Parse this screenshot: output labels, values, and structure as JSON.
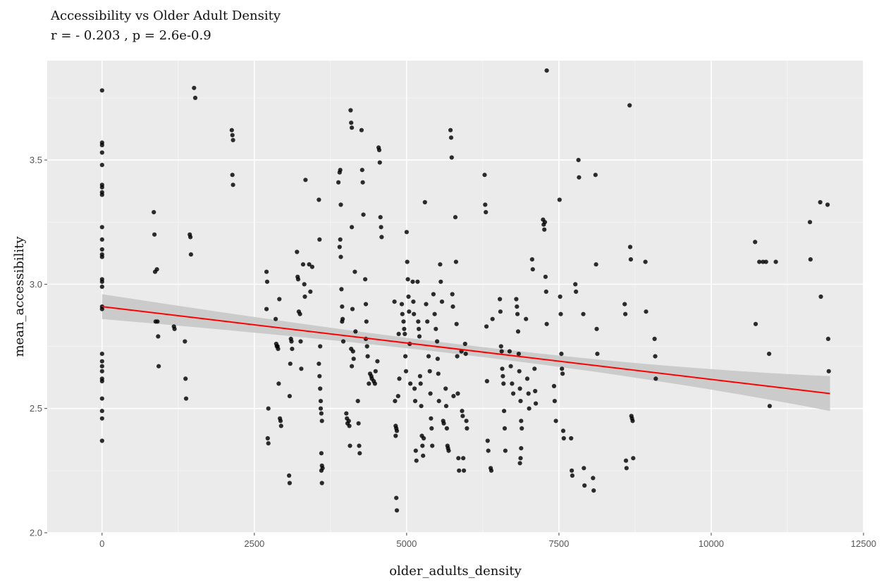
{
  "chart_data": {
    "type": "scatter",
    "title": "Accessibility vs Older Adult Density",
    "subtitle": "r = - 0.203 , p = 2.6e-0.9",
    "xlabel": "older_adults_density",
    "ylabel": "mean_accessibility",
    "xlim": [
      -900,
      12500
    ],
    "ylim": [
      2.0,
      3.9
    ],
    "x_ticks": [
      0,
      2500,
      5000,
      7500,
      10000,
      12500
    ],
    "x_tick_labels": [
      "0",
      "2500",
      "5000",
      "7500",
      "10000",
      "12500"
    ],
    "y_ticks": [
      2.0,
      2.5,
      3.0,
      3.5
    ],
    "y_tick_labels": [
      "2.0",
      "2.5",
      "3.0",
      "3.5"
    ],
    "grid": true,
    "background": "#ebebeb",
    "point_color": "#000000",
    "fit_line": {
      "type": "linear",
      "color": "#ff0000",
      "band_color": "#c8c8c8",
      "x": [
        0,
        11950
      ],
      "y": [
        2.91,
        2.56
      ],
      "ci_half_width": [
        0.05,
        0.07
      ]
    },
    "points": [
      [
        0,
        3.78
      ],
      [
        0,
        3.57
      ],
      [
        0,
        3.56
      ],
      [
        0,
        3.53
      ],
      [
        0,
        3.48
      ],
      [
        0,
        3.4
      ],
      [
        0,
        3.39
      ],
      [
        0,
        3.37
      ],
      [
        0,
        3.36
      ],
      [
        0,
        3.23
      ],
      [
        0,
        3.18
      ],
      [
        0,
        3.14
      ],
      [
        0,
        3.12
      ],
      [
        0,
        3.11
      ],
      [
        0,
        3.02
      ],
      [
        0,
        3.01
      ],
      [
        0,
        2.99
      ],
      [
        0,
        2.91
      ],
      [
        0,
        2.9
      ],
      [
        0,
        2.72
      ],
      [
        0,
        2.69
      ],
      [
        0,
        2.67
      ],
      [
        0,
        2.65
      ],
      [
        0,
        2.62
      ],
      [
        0,
        2.61
      ],
      [
        0,
        2.54
      ],
      [
        0,
        2.49
      ],
      [
        0,
        2.46
      ],
      [
        0,
        2.37
      ],
      [
        850,
        3.29
      ],
      [
        860,
        3.2
      ],
      [
        870,
        3.05
      ],
      [
        900,
        3.06
      ],
      [
        880,
        2.85
      ],
      [
        910,
        2.85
      ],
      [
        920,
        2.79
      ],
      [
        930,
        2.67
      ],
      [
        1180,
        2.83
      ],
      [
        1190,
        2.82
      ],
      [
        1360,
        2.77
      ],
      [
        1370,
        2.62
      ],
      [
        1380,
        2.54
      ],
      [
        1440,
        3.2
      ],
      [
        1450,
        3.19
      ],
      [
        1460,
        3.12
      ],
      [
        1510,
        3.79
      ],
      [
        1530,
        3.75
      ],
      [
        2130,
        3.62
      ],
      [
        2140,
        3.6
      ],
      [
        2150,
        3.58
      ],
      [
        2140,
        3.44
      ],
      [
        2150,
        3.4
      ],
      [
        2700,
        3.05
      ],
      [
        2710,
        3.01
      ],
      [
        2700,
        2.9
      ],
      [
        2730,
        2.5
      ],
      [
        2720,
        2.38
      ],
      [
        2730,
        2.36
      ],
      [
        2850,
        2.86
      ],
      [
        2860,
        2.76
      ],
      [
        2870,
        2.75
      ],
      [
        2880,
        2.75
      ],
      [
        2890,
        2.74
      ],
      [
        2900,
        2.6
      ],
      [
        2910,
        2.94
      ],
      [
        2920,
        2.46
      ],
      [
        2930,
        2.45
      ],
      [
        2940,
        2.43
      ],
      [
        3100,
        2.78
      ],
      [
        3110,
        2.77
      ],
      [
        3120,
        2.74
      ],
      [
        3090,
        2.68
      ],
      [
        3080,
        2.55
      ],
      [
        3070,
        2.23
      ],
      [
        3080,
        2.2
      ],
      [
        3200,
        3.13
      ],
      [
        3210,
        3.03
      ],
      [
        3220,
        3.02
      ],
      [
        3230,
        2.89
      ],
      [
        3250,
        2.88
      ],
      [
        3260,
        2.77
      ],
      [
        3270,
        2.66
      ],
      [
        3300,
        3.08
      ],
      [
        3320,
        3.0
      ],
      [
        3330,
        2.95
      ],
      [
        3340,
        3.42
      ],
      [
        3400,
        3.08
      ],
      [
        3420,
        2.97
      ],
      [
        3450,
        3.07
      ],
      [
        3560,
        3.34
      ],
      [
        3570,
        3.18
      ],
      [
        3580,
        2.75
      ],
      [
        3560,
        2.68
      ],
      [
        3570,
        2.63
      ],
      [
        3580,
        2.58
      ],
      [
        3590,
        2.53
      ],
      [
        3590,
        2.5
      ],
      [
        3600,
        2.48
      ],
      [
        3610,
        2.45
      ],
      [
        3600,
        2.32
      ],
      [
        3610,
        2.27
      ],
      [
        3620,
        2.26
      ],
      [
        3600,
        2.25
      ],
      [
        3610,
        2.2
      ],
      [
        3880,
        3.41
      ],
      [
        3900,
        3.45
      ],
      [
        3910,
        3.46
      ],
      [
        3920,
        3.32
      ],
      [
        3910,
        3.18
      ],
      [
        3900,
        3.15
      ],
      [
        3920,
        3.11
      ],
      [
        3930,
        2.98
      ],
      [
        3940,
        2.91
      ],
      [
        3950,
        2.86
      ],
      [
        3940,
        2.85
      ],
      [
        3960,
        2.77
      ],
      [
        4010,
        2.48
      ],
      [
        4020,
        2.46
      ],
      [
        4030,
        2.44
      ],
      [
        4050,
        2.45
      ],
      [
        4060,
        2.43
      ],
      [
        4070,
        2.35
      ],
      [
        4080,
        3.7
      ],
      [
        4090,
        3.65
      ],
      [
        4100,
        3.63
      ],
      [
        4100,
        3.23
      ],
      [
        4110,
        2.9
      ],
      [
        4090,
        2.74
      ],
      [
        4120,
        2.73
      ],
      [
        4130,
        2.7
      ],
      [
        4100,
        2.67
      ],
      [
        4150,
        3.05
      ],
      [
        4160,
        2.81
      ],
      [
        4200,
        2.53
      ],
      [
        4210,
        2.44
      ],
      [
        4220,
        2.35
      ],
      [
        4230,
        2.32
      ],
      [
        4260,
        3.62
      ],
      [
        4270,
        3.46
      ],
      [
        4280,
        3.41
      ],
      [
        4290,
        3.28
      ],
      [
        4330,
        2.92
      ],
      [
        4340,
        2.85
      ],
      [
        4320,
        3.02
      ],
      [
        4330,
        2.78
      ],
      [
        4350,
        2.75
      ],
      [
        4360,
        2.71
      ],
      [
        4380,
        2.6
      ],
      [
        4400,
        2.64
      ],
      [
        4420,
        2.63
      ],
      [
        4430,
        2.62
      ],
      [
        4460,
        2.61
      ],
      [
        4480,
        2.6
      ],
      [
        4490,
        2.65
      ],
      [
        4540,
        3.55
      ],
      [
        4550,
        3.54
      ],
      [
        4560,
        3.49
      ],
      [
        4570,
        3.27
      ],
      [
        4580,
        3.23
      ],
      [
        4590,
        3.19
      ],
      [
        4520,
        2.69
      ],
      [
        4800,
        2.93
      ],
      [
        4810,
        2.53
      ],
      [
        4820,
        2.43
      ],
      [
        4830,
        2.42
      ],
      [
        4840,
        2.41
      ],
      [
        4820,
        2.39
      ],
      [
        4830,
        2.14
      ],
      [
        4840,
        2.09
      ],
      [
        4870,
        2.8
      ],
      [
        4880,
        2.62
      ],
      [
        4860,
        2.55
      ],
      [
        4920,
        2.92
      ],
      [
        4930,
        2.88
      ],
      [
        4950,
        2.85
      ],
      [
        4960,
        2.82
      ],
      [
        4970,
        2.8
      ],
      [
        4980,
        2.71
      ],
      [
        4990,
        2.65
      ],
      [
        5000,
        3.21
      ],
      [
        5010,
        3.09
      ],
      [
        5020,
        3.02
      ],
      [
        5030,
        2.95
      ],
      [
        5040,
        2.89
      ],
      [
        5050,
        2.76
      ],
      [
        5060,
        2.6
      ],
      [
        5100,
        3.01
      ],
      [
        5110,
        2.93
      ],
      [
        5120,
        2.88
      ],
      [
        5130,
        2.58
      ],
      [
        5140,
        2.53
      ],
      [
        5150,
        2.33
      ],
      [
        5160,
        2.29
      ],
      [
        5180,
        3.01
      ],
      [
        5190,
        2.85
      ],
      [
        5200,
        2.82
      ],
      [
        5210,
        2.79
      ],
      [
        5220,
        2.63
      ],
      [
        5230,
        2.6
      ],
      [
        5240,
        2.51
      ],
      [
        5250,
        2.39
      ],
      [
        5260,
        2.35
      ],
      [
        5270,
        2.31
      ],
      [
        5280,
        2.38
      ],
      [
        5300,
        3.33
      ],
      [
        5320,
        2.92
      ],
      [
        5340,
        2.85
      ],
      [
        5360,
        2.71
      ],
      [
        5380,
        2.65
      ],
      [
        5390,
        2.56
      ],
      [
        5400,
        2.46
      ],
      [
        5410,
        2.42
      ],
      [
        5420,
        2.35
      ],
      [
        5440,
        2.96
      ],
      [
        5460,
        2.88
      ],
      [
        5480,
        2.82
      ],
      [
        5500,
        2.77
      ],
      [
        5510,
        2.7
      ],
      [
        5520,
        2.64
      ],
      [
        5530,
        2.53
      ],
      [
        5550,
        3.08
      ],
      [
        5560,
        3.01
      ],
      [
        5580,
        2.93
      ],
      [
        5600,
        2.45
      ],
      [
        5610,
        2.44
      ],
      [
        5640,
        2.58
      ],
      [
        5650,
        2.51
      ],
      [
        5660,
        2.42
      ],
      [
        5670,
        2.35
      ],
      [
        5680,
        2.34
      ],
      [
        5690,
        2.33
      ],
      [
        5720,
        3.62
      ],
      [
        5730,
        3.59
      ],
      [
        5740,
        3.51
      ],
      [
        5750,
        2.96
      ],
      [
        5760,
        2.91
      ],
      [
        5770,
        2.55
      ],
      [
        5800,
        3.27
      ],
      [
        5810,
        3.09
      ],
      [
        5820,
        2.84
      ],
      [
        5830,
        2.71
      ],
      [
        5840,
        2.56
      ],
      [
        5850,
        2.3
      ],
      [
        5860,
        2.25
      ],
      [
        5900,
        2.73
      ],
      [
        5910,
        2.49
      ],
      [
        5920,
        2.47
      ],
      [
        5930,
        2.3
      ],
      [
        5940,
        2.25
      ],
      [
        5960,
        2.76
      ],
      [
        5970,
        2.72
      ],
      [
        5980,
        2.45
      ],
      [
        5990,
        2.42
      ],
      [
        6280,
        3.44
      ],
      [
        6290,
        3.32
      ],
      [
        6300,
        3.29
      ],
      [
        6310,
        2.83
      ],
      [
        6320,
        2.61
      ],
      [
        6330,
        2.37
      ],
      [
        6340,
        2.33
      ],
      [
        6380,
        2.26
      ],
      [
        6390,
        2.25
      ],
      [
        6410,
        2.86
      ],
      [
        6530,
        2.94
      ],
      [
        6540,
        2.89
      ],
      [
        6550,
        2.75
      ],
      [
        6560,
        2.73
      ],
      [
        6570,
        2.66
      ],
      [
        6580,
        2.63
      ],
      [
        6590,
        2.6
      ],
      [
        6600,
        2.49
      ],
      [
        6610,
        2.42
      ],
      [
        6620,
        2.33
      ],
      [
        6690,
        2.73
      ],
      [
        6710,
        2.67
      ],
      [
        6730,
        2.6
      ],
      [
        6750,
        2.56
      ],
      [
        6800,
        2.94
      ],
      [
        6810,
        2.91
      ],
      [
        6820,
        2.88
      ],
      [
        6830,
        2.81
      ],
      [
        6840,
        2.72
      ],
      [
        6850,
        2.65
      ],
      [
        6860,
        2.58
      ],
      [
        6870,
        2.53
      ],
      [
        6880,
        2.45
      ],
      [
        6890,
        2.42
      ],
      [
        6870,
        2.3
      ],
      [
        6860,
        2.28
      ],
      [
        6880,
        2.34
      ],
      [
        6960,
        2.86
      ],
      [
        6980,
        2.62
      ],
      [
        7000,
        2.56
      ],
      [
        7010,
        2.5
      ],
      [
        7060,
        3.1
      ],
      [
        7070,
        3.06
      ],
      [
        7100,
        2.66
      ],
      [
        7110,
        2.57
      ],
      [
        7120,
        2.52
      ],
      [
        7240,
        3.26
      ],
      [
        7250,
        3.24
      ],
      [
        7260,
        3.22
      ],
      [
        7270,
        3.25
      ],
      [
        7280,
        3.03
      ],
      [
        7290,
        2.97
      ],
      [
        7300,
        2.84
      ],
      [
        7300,
        3.86
      ],
      [
        7420,
        2.59
      ],
      [
        7430,
        2.53
      ],
      [
        7450,
        2.45
      ],
      [
        7510,
        3.34
      ],
      [
        7520,
        2.95
      ],
      [
        7530,
        2.88
      ],
      [
        7540,
        2.72
      ],
      [
        7550,
        2.66
      ],
      [
        7560,
        2.64
      ],
      [
        7570,
        2.41
      ],
      [
        7580,
        2.38
      ],
      [
        7700,
        2.38
      ],
      [
        7710,
        2.25
      ],
      [
        7720,
        2.23
      ],
      [
        7770,
        3.0
      ],
      [
        7780,
        2.97
      ],
      [
        7820,
        3.5
      ],
      [
        7830,
        3.43
      ],
      [
        7900,
        2.88
      ],
      [
        7910,
        2.26
      ],
      [
        7920,
        2.19
      ],
      [
        8060,
        2.22
      ],
      [
        8070,
        2.17
      ],
      [
        8100,
        3.44
      ],
      [
        8110,
        3.08
      ],
      [
        8120,
        2.82
      ],
      [
        8130,
        2.72
      ],
      [
        8580,
        2.92
      ],
      [
        8590,
        2.88
      ],
      [
        8600,
        2.29
      ],
      [
        8610,
        2.26
      ],
      [
        8660,
        3.72
      ],
      [
        8670,
        3.15
      ],
      [
        8680,
        3.1
      ],
      [
        8690,
        2.47
      ],
      [
        8700,
        2.46
      ],
      [
        8710,
        2.45
      ],
      [
        8720,
        2.3
      ],
      [
        8920,
        3.09
      ],
      [
        8930,
        2.89
      ],
      [
        9070,
        2.78
      ],
      [
        9080,
        2.71
      ],
      [
        9090,
        2.62
      ],
      [
        10720,
        3.17
      ],
      [
        10730,
        2.84
      ],
      [
        10790,
        3.09
      ],
      [
        10850,
        3.09
      ],
      [
        10900,
        3.09
      ],
      [
        10950,
        2.72
      ],
      [
        10960,
        2.51
      ],
      [
        11060,
        3.09
      ],
      [
        11620,
        3.25
      ],
      [
        11630,
        3.1
      ],
      [
        11790,
        3.33
      ],
      [
        11800,
        2.95
      ],
      [
        11910,
        3.32
      ],
      [
        11920,
        2.78
      ],
      [
        11930,
        2.65
      ]
    ]
  }
}
